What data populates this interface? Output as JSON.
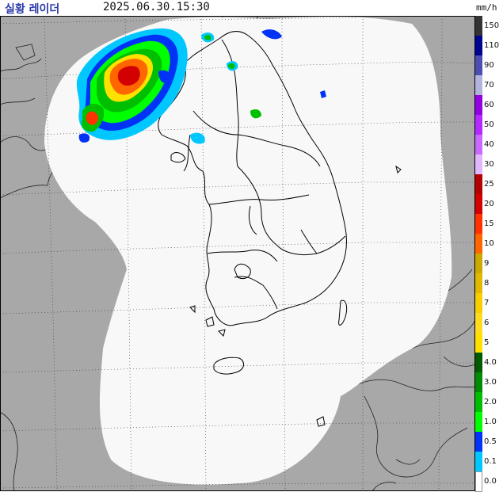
{
  "header": {
    "app_title": "실황 레이더",
    "timestamp": "2025.06.30.15:30"
  },
  "legend": {
    "unit": "mm/h",
    "levels": [
      {
        "label": "150",
        "color": "#333333"
      },
      {
        "label": "110",
        "color": "#000390"
      },
      {
        "label": "90",
        "color": "#4c4eb1"
      },
      {
        "label": "70",
        "color": "#b3b4de"
      },
      {
        "label": "60",
        "color": "#9300e4"
      },
      {
        "label": "50",
        "color": "#b329ff"
      },
      {
        "label": "40",
        "color": "#c969ff"
      },
      {
        "label": "30",
        "color": "#e0b6ff"
      },
      {
        "label": "25",
        "color": "#b40000"
      },
      {
        "label": "20",
        "color": "#d20000"
      },
      {
        "label": "15",
        "color": "#ff3200"
      },
      {
        "label": "10",
        "color": "#ff6600"
      },
      {
        "label": "9",
        "color": "#ccaa00"
      },
      {
        "label": "8",
        "color": "#e0b900"
      },
      {
        "label": "7",
        "color": "#f9cd00"
      },
      {
        "label": "6",
        "color": "#ffdc1f"
      },
      {
        "label": "5",
        "color": "#ffe100"
      },
      {
        "label": "4.0",
        "color": "#005a00"
      },
      {
        "label": "3.0",
        "color": "#008c00"
      },
      {
        "label": "2.0",
        "color": "#00be00"
      },
      {
        "label": "1.0",
        "color": "#00ff00"
      },
      {
        "label": "0.5",
        "color": "#0033f5"
      },
      {
        "label": "0.1",
        "color": "#00c8ff"
      },
      {
        "label": "0.0",
        "color": "#ffffff"
      }
    ]
  },
  "map": {
    "outside_coverage_color": "#a8a8a8",
    "coverage_color": "#f8f8f8",
    "coastline_color": "#000000",
    "grid_color": "#333333"
  }
}
